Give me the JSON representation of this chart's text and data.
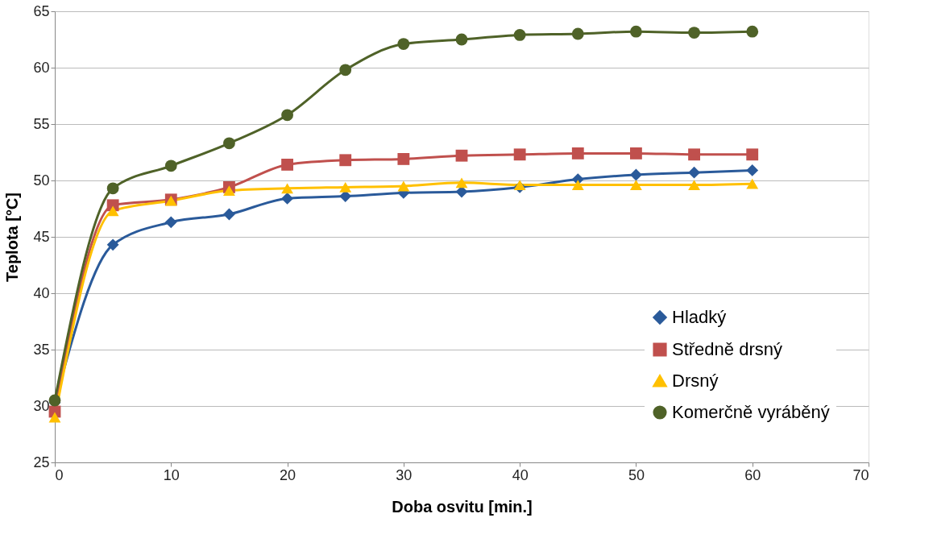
{
  "chart_data": {
    "type": "line",
    "xlabel": "Doba osvitu [min.]",
    "ylabel": "Teplota [°C]",
    "x": [
      0,
      5,
      10,
      15,
      20,
      25,
      30,
      35,
      40,
      45,
      50,
      55,
      60
    ],
    "series": [
      {
        "name": "Hladký",
        "color": "#2a5a9a",
        "marker": "diamond",
        "values": [
          30.3,
          44.3,
          46.3,
          47.0,
          48.4,
          48.6,
          48.9,
          49.0,
          49.4,
          50.1,
          50.5,
          50.7,
          50.9
        ]
      },
      {
        "name": "Středně drsný",
        "color": "#c0504d",
        "marker": "square",
        "values": [
          29.5,
          47.8,
          48.3,
          49.4,
          51.4,
          51.8,
          51.9,
          52.2,
          52.3,
          52.4,
          52.4,
          52.3,
          52.3
        ]
      },
      {
        "name": "Drsný",
        "color": "#ffc000",
        "marker": "triangle",
        "values": [
          29.0,
          47.3,
          48.2,
          49.1,
          49.3,
          49.4,
          49.5,
          49.8,
          49.6,
          49.6,
          49.6,
          49.6,
          49.7
        ]
      },
      {
        "name": "Komerčně vyráběný",
        "color": "#4f6228",
        "marker": "circle",
        "values": [
          30.5,
          49.3,
          51.3,
          53.3,
          55.8,
          59.8,
          62.1,
          62.5,
          62.9,
          63.0,
          63.2,
          63.1,
          63.2
        ]
      }
    ],
    "xlim": [
      0,
      70
    ],
    "xticks": [
      0,
      10,
      20,
      30,
      40,
      50,
      60,
      70
    ],
    "ylim": [
      25,
      65
    ],
    "yticks": [
      25,
      30,
      35,
      40,
      45,
      50,
      55,
      60,
      65
    ],
    "grid": "y",
    "legend": "bottom right",
    "line_style": "solid"
  }
}
